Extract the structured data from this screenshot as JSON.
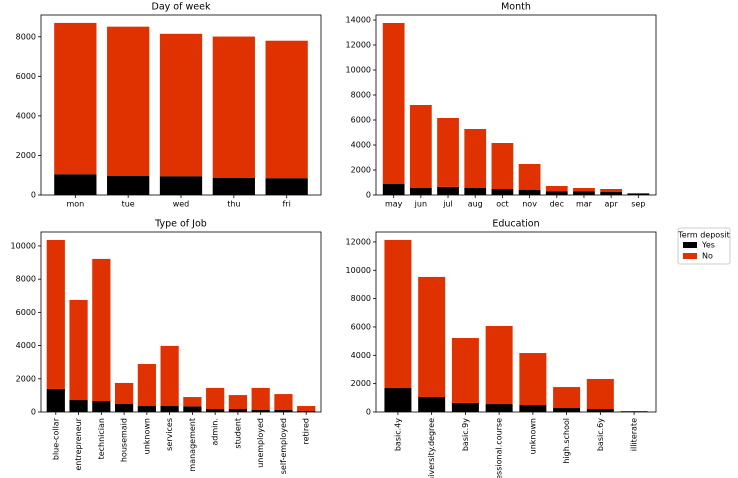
{
  "chart_data": [
    {
      "type": "bar",
      "stacked": true,
      "title": "Day of week",
      "categories": [
        "mon",
        "tue",
        "wed",
        "thu",
        "fri"
      ],
      "series": [
        {
          "name": "Yes",
          "color": "#000000",
          "values": [
            1050,
            960,
            950,
            860,
            850
          ]
        },
        {
          "name": "No",
          "color": "#e03200",
          "values": [
            7650,
            7550,
            7200,
            7150,
            6950
          ]
        }
      ],
      "ylim": [
        0,
        9100
      ],
      "yticks": [
        0,
        2000,
        4000,
        6000,
        8000
      ],
      "xtick_rotation": 0
    },
    {
      "type": "bar",
      "stacked": true,
      "title": "Month",
      "categories": [
        "may",
        "jun",
        "jul",
        "aug",
        "oct",
        "nov",
        "dec",
        "mar",
        "apr",
        "sep"
      ],
      "series": [
        {
          "name": "Yes",
          "color": "#000000",
          "values": [
            880,
            560,
            650,
            560,
            480,
            400,
            280,
            280,
            240,
            80
          ]
        },
        {
          "name": "No",
          "color": "#e03200",
          "values": [
            12880,
            6640,
            5510,
            4720,
            3680,
            2080,
            440,
            280,
            240,
            80
          ]
        }
      ],
      "ylim": [
        0,
        14400
      ],
      "yticks": [
        0,
        2000,
        4000,
        6000,
        8000,
        10000,
        12000,
        14000
      ],
      "xtick_rotation": 0
    },
    {
      "type": "bar",
      "stacked": true,
      "title": "Type of Job",
      "categories": [
        "blue-collar",
        "entrepreneur",
        "technician",
        "housemaid",
        "unknown",
        "services",
        "management",
        "admin.",
        "student",
        "unemployed",
        "self-employed",
        "retired"
      ],
      "series": [
        {
          "name": "Yes",
          "color": "#000000",
          "values": [
            1390,
            720,
            660,
            480,
            360,
            360,
            340,
            180,
            180,
            120,
            120,
            60
          ]
        },
        {
          "name": "No",
          "color": "#e03200",
          "values": [
            8970,
            6030,
            8560,
            1270,
            2530,
            3620,
            560,
            1270,
            840,
            1330,
            960,
            300
          ]
        }
      ],
      "ylim": [
        0,
        10840
      ],
      "yticks": [
        0,
        2000,
        4000,
        6000,
        8000,
        10000
      ],
      "xtick_rotation": 90
    },
    {
      "type": "bar",
      "stacked": true,
      "title": "Education",
      "categories": [
        "basic.4y",
        "university.degree",
        "basic.9y",
        "fessional.course",
        "unknown",
        "high.school",
        "basic.6y",
        "illiterate"
      ],
      "series": [
        {
          "name": "Yes",
          "color": "#000000",
          "values": [
            1690,
            1060,
            640,
            560,
            490,
            280,
            210,
            20
          ]
        },
        {
          "name": "No",
          "color": "#e03200",
          "values": [
            10450,
            8470,
            4580,
            5510,
            3670,
            1480,
            2120,
            50
          ]
        }
      ],
      "ylim": [
        0,
        12700
      ],
      "yticks": [
        0,
        2000,
        4000,
        6000,
        8000,
        10000,
        12000
      ],
      "xtick_rotation": 90,
      "legend": "outside right",
      "legend_title": "Term deposit"
    }
  ]
}
